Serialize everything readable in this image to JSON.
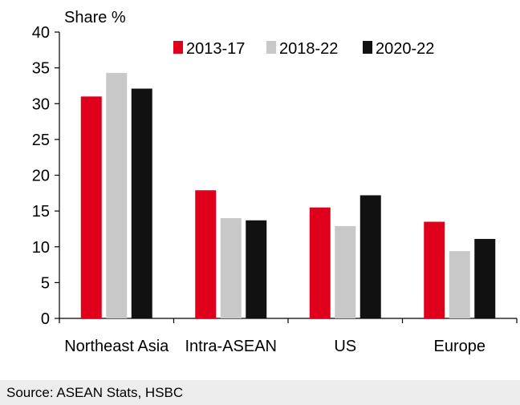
{
  "chart_data": {
    "type": "bar",
    "ylabel": "Share %",
    "categories": [
      "Northeast Asia",
      "Intra-ASEAN",
      "US",
      "Europe"
    ],
    "series": [
      {
        "name": "2013-17",
        "color": "#e0001b",
        "values": [
          31.0,
          17.9,
          15.5,
          13.5
        ]
      },
      {
        "name": "2018-22",
        "color": "#c8c8c8",
        "values": [
          34.3,
          14.0,
          12.9,
          9.4
        ]
      },
      {
        "name": "2020-22",
        "color": "#111111",
        "values": [
          32.1,
          13.7,
          17.2,
          11.1
        ]
      }
    ],
    "ylim": [
      0,
      40
    ],
    "yticks": [
      0,
      5,
      10,
      15,
      20,
      25,
      30,
      35,
      40
    ],
    "grid": false,
    "legend_position": "top-center"
  },
  "source": "Source: ASEAN Stats, HSBC"
}
